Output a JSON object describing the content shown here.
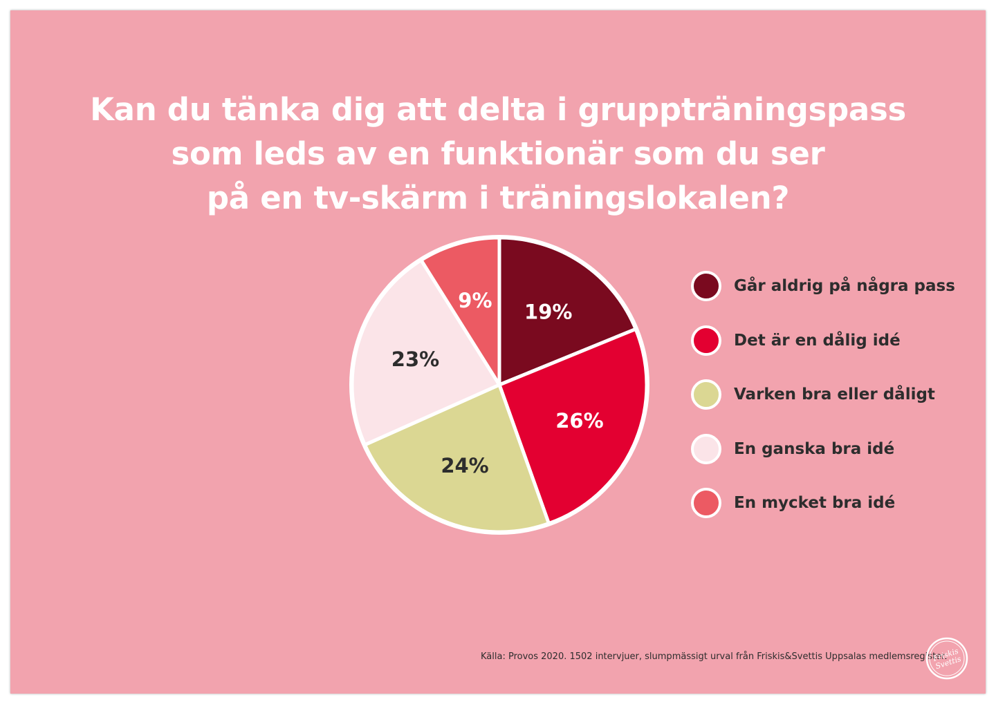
{
  "title": {
    "line1": "Kan du tänka dig att delta i gruppträningspass",
    "line2": "som leds av en funktionär som du ser",
    "line3": "på en tv-skärm i träningslokalen?"
  },
  "source": "Källa: Provos 2020. 1502 intervjuer, slumpmässigt urval från Friskis&Svettis Uppsalas medlemsregister.",
  "colors": {
    "background": "#f2a3ae",
    "text_dark": "#2d2d2d",
    "text_light": "#ffffff"
  },
  "logo": {
    "icon": "friskis-svettis-logo-icon",
    "text": "Friskis Svettis"
  },
  "chart_data": {
    "type": "pie",
    "start": "top, clockwise",
    "slices": [
      {
        "label": "Går aldrig på några pass",
        "value": 19,
        "display": "19%",
        "color": "#7a0a1f",
        "label_color": "#ffffff"
      },
      {
        "label": "Det är en dålig idé",
        "value": 26,
        "display": "26%",
        "color": "#e30031",
        "label_color": "#ffffff"
      },
      {
        "label": "Varken bra eller dåligt",
        "value": 24,
        "display": "24%",
        "color": "#dbd793",
        "label_color": "#2d2d2d"
      },
      {
        "label": "En ganska bra idé",
        "value": 23,
        "display": "23%",
        "color": "#fbe4e8",
        "label_color": "#2d2d2d"
      },
      {
        "label": "En mycket bra idé",
        "value": 9,
        "display": "9%",
        "color": "#ec5a63",
        "label_color": "#ffffff"
      }
    ],
    "legend_placement": "right"
  }
}
